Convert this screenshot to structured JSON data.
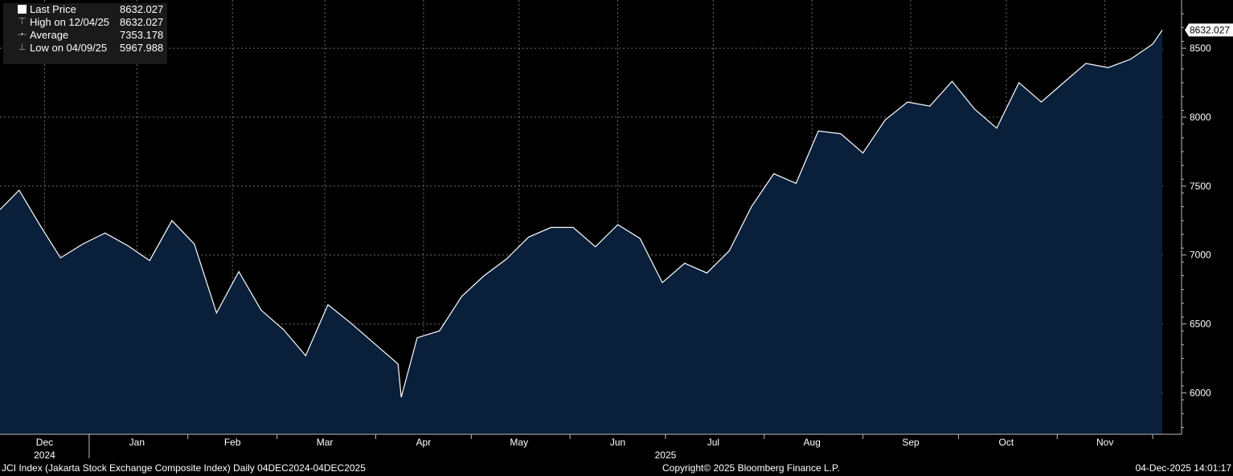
{
  "legend": {
    "last_label": "Last Price",
    "last_value": "8632.027",
    "high_label": "High on 12/04/25",
    "high_value": "8632.027",
    "avg_label": "Average",
    "avg_value": "7353.178",
    "low_label": "Low on 04/09/25",
    "low_value": "5967.988"
  },
  "footer": {
    "left": "JCI Index (Jakarta Stock Exchange Composite Index) Daily 04DEC2024-04DEC2025",
    "center": "Copyright© 2025 Bloomberg Finance L.P.",
    "right": "04-Dec-2025 14:01:17"
  },
  "colors": {
    "background": "#000000",
    "area_fill": "#0a1f3a",
    "line": "#ffffff",
    "grid": "#6f6f6f"
  },
  "chart_data": {
    "type": "area",
    "title": "JCI Index (Jakarta Stock Exchange Composite Index) Daily 04DEC2024-04DEC2025",
    "ylim": [
      5700,
      8850
    ],
    "y_ticks": [
      6000,
      6500,
      7000,
      7500,
      8000,
      8500
    ],
    "last_value_label": "8632.027",
    "x_month_labels": [
      "Dec",
      "Jan",
      "Feb",
      "Mar",
      "Apr",
      "May",
      "Jun",
      "Jul",
      "Aug",
      "Sep",
      "Oct",
      "Nov"
    ],
    "x_year_labels": [
      "2024",
      "2025"
    ],
    "x": [
      "2024-12-04",
      "2024-12-10",
      "2024-12-17",
      "2024-12-23",
      "2024-12-30",
      "2025-01-06",
      "2025-01-13",
      "2025-01-20",
      "2025-01-27",
      "2025-02-03",
      "2025-02-10",
      "2025-02-17",
      "2025-02-24",
      "2025-03-03",
      "2025-03-10",
      "2025-03-17",
      "2025-03-24",
      "2025-04-08",
      "2025-04-09",
      "2025-04-14",
      "2025-04-21",
      "2025-04-28",
      "2025-05-05",
      "2025-05-12",
      "2025-05-19",
      "2025-05-26",
      "2025-06-02",
      "2025-06-09",
      "2025-06-16",
      "2025-06-23",
      "2025-06-30",
      "2025-07-07",
      "2025-07-14",
      "2025-07-21",
      "2025-07-28",
      "2025-08-04",
      "2025-08-11",
      "2025-08-18",
      "2025-08-25",
      "2025-09-01",
      "2025-09-08",
      "2025-09-15",
      "2025-09-22",
      "2025-09-29",
      "2025-10-06",
      "2025-10-13",
      "2025-10-20",
      "2025-10-27",
      "2025-11-03",
      "2025-11-10",
      "2025-11-17",
      "2025-11-24",
      "2025-12-01",
      "2025-12-04"
    ],
    "series": [
      {
        "values": [
          7330,
          7470,
          7200,
          6980,
          7080,
          7160,
          7070,
          6960,
          7250,
          7080,
          6580,
          6880,
          6600,
          6460,
          6270,
          6640,
          6510,
          6210,
          5967.988,
          6400,
          6450,
          6700,
          6850,
          6970,
          7130,
          7200,
          7200,
          7060,
          7220,
          7120,
          6800,
          6940,
          6870,
          7030,
          7350,
          7590,
          7520,
          7900,
          7880,
          7740,
          7980,
          8110,
          8080,
          8260,
          8060,
          7920,
          8250,
          8110,
          8250,
          8390,
          8360,
          8420,
          8530,
          8632.027
        ]
      }
    ]
  }
}
